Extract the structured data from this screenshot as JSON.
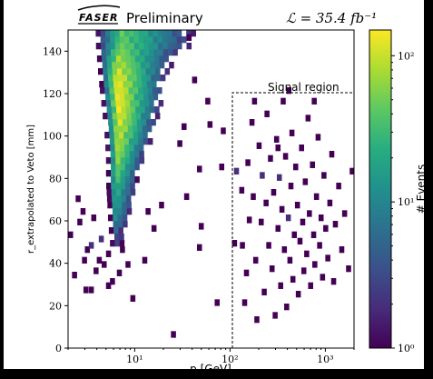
{
  "chart_data": {
    "type": "heatmap",
    "header": {
      "logo_text": "FASER",
      "preliminary": "Preliminary",
      "luminosity": "ℒ = 35.4 fb⁻¹"
    },
    "xlabel": "p [GeV]",
    "ylabel": "r_extrapolated to Veto [mm]",
    "xscale": "log",
    "xlim": [
      2,
      2000
    ],
    "ylim": [
      0,
      150
    ],
    "x_ticks": [
      {
        "value": 10,
        "label": "10¹"
      },
      {
        "value": 100,
        "label": "10²"
      },
      {
        "value": 1000,
        "label": "10³"
      }
    ],
    "y_ticks": [
      0,
      20,
      40,
      60,
      80,
      100,
      120,
      140
    ],
    "signal_region": {
      "label": "Signal region",
      "p_min": 100,
      "r_max": 120
    },
    "colorbar": {
      "label": "# Events",
      "scale": "log",
      "range": [
        1,
        150
      ],
      "ticks": [
        {
          "value": 1,
          "label": "10⁰"
        },
        {
          "value": 10,
          "label": "10¹"
        },
        {
          "value": 100,
          "label": "10²"
        }
      ],
      "colormap": [
        "#440154",
        "#472c7a",
        "#3b518b",
        "#2c718e",
        "#21908d",
        "#27ad81",
        "#5cc863",
        "#aadc32",
        "#fde725"
      ]
    },
    "bins": {
      "x_bin_width_log10": 0.05,
      "y_bin_width_mm": 3,
      "core": [
        {
          "r": 144,
          "p": [
            3.9,
            40
          ],
          "n_peak": 40
        },
        {
          "r": 138,
          "p": [
            4.0,
            25
          ],
          "n_peak": 60
        },
        {
          "r": 126,
          "p": [
            4.2,
            20
          ],
          "n_peak": 130
        },
        {
          "r": 114,
          "p": [
            4.5,
            18
          ],
          "n_peak": 130
        },
        {
          "r": 102,
          "p": [
            4.8,
            15
          ],
          "n_peak": 100
        },
        {
          "r": 90,
          "p": [
            5.0,
            12
          ],
          "n_peak": 60
        },
        {
          "r": 78,
          "p": [
            5.0,
            10
          ],
          "n_peak": 30
        },
        {
          "r": 66,
          "p": [
            5.2,
            9
          ],
          "n_peak": 15
        },
        {
          "r": 57,
          "p": [
            5.3,
            8
          ],
          "n_peak": 6
        },
        {
          "r": 51,
          "p": [
            5.5,
            7
          ],
          "n_peak": 3
        }
      ],
      "sparse_points": [
        [
          2.4,
          69,
          1
        ],
        [
          2.5,
          58,
          1
        ],
        [
          3,
          45,
          1
        ],
        [
          3.3,
          47,
          2
        ],
        [
          3.7,
          35,
          1
        ],
        [
          2.9,
          26,
          1
        ],
        [
          4,
          40,
          1
        ],
        [
          4.2,
          50,
          2
        ],
        [
          4.5,
          38,
          1
        ],
        [
          5,
          43,
          1
        ],
        [
          5.5,
          30,
          1
        ],
        [
          6.5,
          34,
          1
        ],
        [
          3.3,
          26,
          1
        ],
        [
          5,
          28,
          1
        ],
        [
          8,
          38,
          1
        ],
        [
          7,
          45,
          1
        ],
        [
          9,
          22,
          1
        ],
        [
          12,
          40,
          1
        ],
        [
          15,
          55,
          1
        ],
        [
          13,
          63,
          1
        ],
        [
          18,
          66,
          1
        ],
        [
          24,
          5,
          1
        ],
        [
          33,
          70,
          1
        ],
        [
          45,
          46,
          1
        ],
        [
          47,
          56,
          1
        ],
        [
          28,
          95,
          1
        ],
        [
          31,
          103,
          1
        ],
        [
          45,
          83,
          1
        ],
        [
          58,
          104,
          1
        ],
        [
          55,
          115,
          1
        ],
        [
          40,
          125,
          1
        ],
        [
          35,
          145,
          1
        ],
        [
          69,
          20,
          1
        ],
        [
          77,
          84,
          1
        ],
        [
          80,
          101,
          1
        ],
        [
          110,
          82,
          2
        ],
        [
          125,
          73,
          1
        ],
        [
          127,
          47,
          1
        ],
        [
          134,
          20,
          1
        ],
        [
          145,
          86,
          1
        ],
        [
          150,
          59,
          1
        ],
        [
          140,
          34,
          1
        ],
        [
          160,
          105,
          1
        ],
        [
          165,
          70,
          1
        ],
        [
          175,
          40,
          1
        ],
        [
          180,
          12,
          1
        ],
        [
          190,
          94,
          1
        ],
        [
          200,
          58,
          1
        ],
        [
          205,
          80,
          2
        ],
        [
          215,
          25,
          1
        ],
        [
          225,
          67,
          1
        ],
        [
          230,
          109,
          1
        ],
        [
          240,
          47,
          1
        ],
        [
          250,
          88,
          1
        ],
        [
          260,
          36,
          1
        ],
        [
          270,
          72,
          1
        ],
        [
          280,
          14,
          1
        ],
        [
          290,
          97,
          1
        ],
        [
          300,
          55,
          1
        ],
        [
          310,
          79,
          2
        ],
        [
          320,
          28,
          1
        ],
        [
          330,
          64,
          1
        ],
        [
          340,
          115,
          1
        ],
        [
          350,
          45,
          1
        ],
        [
          360,
          89,
          1
        ],
        [
          370,
          18,
          1
        ],
        [
          385,
          60,
          2
        ],
        [
          400,
          40,
          1
        ],
        [
          410,
          75,
          1
        ],
        [
          420,
          100,
          1
        ],
        [
          430,
          31,
          1
        ],
        [
          445,
          52,
          1
        ],
        [
          460,
          84,
          1
        ],
        [
          480,
          66,
          1
        ],
        [
          490,
          24,
          1
        ],
        [
          510,
          49,
          1
        ],
        [
          530,
          93,
          1
        ],
        [
          545,
          58,
          1
        ],
        [
          560,
          35,
          1
        ],
        [
          580,
          77,
          1
        ],
        [
          600,
          43,
          1
        ],
        [
          620,
          107,
          1
        ],
        [
          640,
          62,
          1
        ],
        [
          660,
          28,
          1
        ],
        [
          690,
          85,
          1
        ],
        [
          710,
          52,
          1
        ],
        [
          730,
          38,
          1
        ],
        [
          760,
          70,
          1
        ],
        [
          790,
          98,
          1
        ],
        [
          820,
          47,
          1
        ],
        [
          850,
          60,
          1
        ],
        [
          880,
          32,
          1
        ],
        [
          910,
          80,
          1
        ],
        [
          950,
          55,
          1
        ],
        [
          1000,
          41,
          1
        ],
        [
          1050,
          67,
          1
        ],
        [
          1100,
          90,
          1
        ],
        [
          1150,
          30,
          1
        ],
        [
          1200,
          57,
          1
        ],
        [
          1300,
          75,
          1
        ],
        [
          1400,
          45,
          1
        ],
        [
          1500,
          62,
          1
        ],
        [
          1650,
          36,
          1
        ],
        [
          1800,
          82,
          1
        ],
        [
          105,
          48,
          1
        ],
        [
          170,
          115,
          1
        ],
        [
          390,
          120,
          1
        ],
        [
          720,
          115,
          1
        ],
        [
          300,
          93,
          1
        ],
        [
          2,
          52,
          1
        ],
        [
          2.2,
          33,
          1
        ],
        [
          2.7,
          63,
          1
        ],
        [
          2.8,
          40,
          1
        ],
        [
          3.5,
          60,
          1
        ]
      ]
    }
  }
}
